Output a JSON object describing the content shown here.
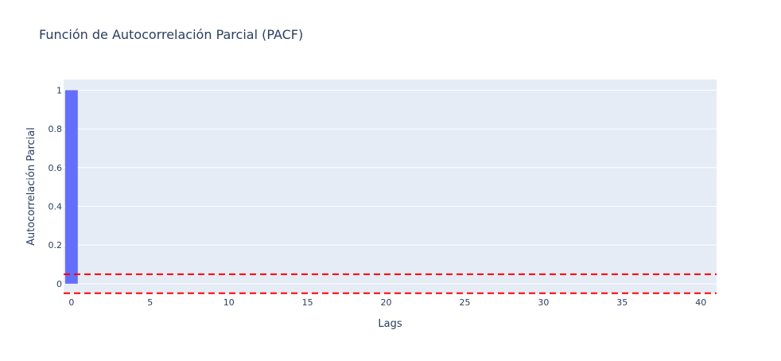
{
  "chart_data": {
    "type": "bar",
    "title": "Función de Autocorrelación Parcial (PACF)",
    "xlabel": "Lags",
    "ylabel": "Autocorrelación Parcial",
    "x": [
      0,
      1,
      2,
      3,
      4,
      5,
      6,
      7,
      8,
      9,
      10,
      11,
      12,
      13,
      14,
      15,
      16,
      17,
      18,
      19,
      20,
      21,
      22,
      23,
      24,
      25,
      26,
      27,
      28,
      29,
      30,
      31,
      32,
      33,
      34,
      35,
      36,
      37,
      38,
      39,
      40
    ],
    "series": [
      {
        "values": [
          1,
          0,
          0,
          0,
          0,
          0,
          0,
          0,
          0,
          0,
          0,
          0,
          0,
          0,
          0,
          0,
          0,
          0,
          0,
          0,
          0,
          0,
          0,
          0,
          0,
          0,
          0,
          0,
          0,
          0,
          0,
          0,
          0,
          0,
          0,
          0,
          0,
          0,
          0,
          0,
          0
        ],
        "color": "#636efa"
      }
    ],
    "xlim": [
      -0.5,
      41
    ],
    "ylim": [
      -0.05,
      1.055
    ],
    "xticks": [
      0,
      5,
      10,
      15,
      20,
      25,
      30,
      35,
      40
    ],
    "xtick_labels": [
      "0",
      "5",
      "10",
      "15",
      "20",
      "25",
      "30",
      "35",
      "40"
    ],
    "yticks": [
      0,
      0.2,
      0.4,
      0.6,
      0.8,
      1
    ],
    "ytick_labels": [
      "0",
      "0.2",
      "0.4",
      "0.6",
      "0.8",
      "1"
    ],
    "confidence_lines": [
      {
        "y": 0.049,
        "color": "#ff0000",
        "style": "dashed"
      },
      {
        "y": -0.049,
        "color": "#ff0000",
        "style": "dashed"
      }
    ],
    "grid": true,
    "legend": "none",
    "plot_background": "#e5ecf6"
  }
}
